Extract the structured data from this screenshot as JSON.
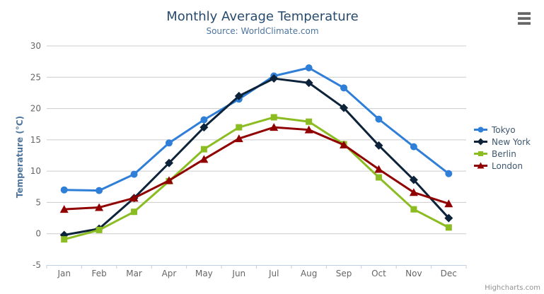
{
  "chart_data": {
    "type": "line",
    "title": "Monthly Average Temperature",
    "subtitle": "Source: WorldClimate.com",
    "categories": [
      "Jan",
      "Feb",
      "Mar",
      "Apr",
      "May",
      "Jun",
      "Jul",
      "Aug",
      "Sep",
      "Oct",
      "Nov",
      "Dec"
    ],
    "xlabel": "",
    "ylabel": "Temperature (°C)",
    "ylim": [
      -5,
      30
    ],
    "ytick_interval": 5,
    "grid": true,
    "legend_position": "right",
    "series": [
      {
        "name": "Tokyo",
        "color": "#2f7ed8",
        "marker": "circle",
        "values": [
          7.0,
          6.9,
          9.5,
          14.5,
          18.2,
          21.5,
          25.2,
          26.5,
          23.3,
          18.3,
          13.9,
          9.6
        ]
      },
      {
        "name": "New York",
        "color": "#0d233a",
        "marker": "diamond",
        "values": [
          -0.2,
          0.8,
          5.7,
          11.3,
          17.0,
          22.0,
          24.8,
          24.1,
          20.1,
          14.1,
          8.6,
          2.5
        ]
      },
      {
        "name": "Berlin",
        "color": "#8bbc21",
        "marker": "square",
        "values": [
          -0.9,
          0.6,
          3.5,
          8.4,
          13.5,
          17.0,
          18.6,
          17.9,
          14.3,
          9.0,
          3.9,
          1.0
        ]
      },
      {
        "name": "London",
        "color": "#910000",
        "marker": "triangle",
        "values": [
          3.9,
          4.2,
          5.7,
          8.5,
          11.9,
          15.2,
          17.0,
          16.6,
          14.2,
          10.3,
          6.6,
          4.8
        ]
      }
    ],
    "colors": {
      "title": "#274b6d",
      "subtitle": "#4d759e",
      "axis_label": "#666666",
      "axis_title": "#4d759e",
      "grid_line": "#cccccc",
      "axis_line": "#c0d0e0",
      "legend_text": "#3e576f",
      "credits": "#909090",
      "background": "#ffffff"
    }
  },
  "menu": {
    "icon": "hamburger-menu-icon"
  },
  "credits": {
    "label": "Highcharts.com"
  }
}
